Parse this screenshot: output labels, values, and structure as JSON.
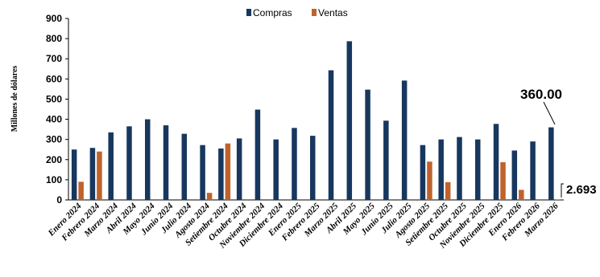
{
  "chart_data": {
    "type": "bar",
    "title": "",
    "xlabel": "",
    "ylabel": "Millones de dólares",
    "ylim": [
      0,
      900
    ],
    "yticks": [
      0,
      100,
      200,
      300,
      400,
      500,
      600,
      700,
      800,
      900
    ],
    "grid": false,
    "legend_position": "top-center",
    "categories": [
      "Enero 2024",
      "Febrero 2024",
      "Marzo 2024",
      "Abril 2024",
      "Mayo 2024",
      "Junio 2024",
      "Julio 2024",
      "Agosto 2024",
      "Setiembre 2024",
      "Octubre 2024",
      "Noviembre 2024",
      "Diciembre 2024",
      "Enero 2025",
      "Febrero 2025",
      "Marzo 2025",
      "Abril 2025",
      "Mayo 2025",
      "Junio 2025",
      "Julio 2025",
      "Agosto 2025",
      "Setiembre 2025",
      "Octubre 2025",
      "Noviembre 2025",
      "Diciembre 2025",
      "Enero 2026",
      "Febrero 2026",
      "Marzo 2026"
    ],
    "series": [
      {
        "name": "Compras",
        "color": "#17375e",
        "values": [
          250,
          258,
          335,
          365,
          400,
          370,
          328,
          272,
          255,
          305,
          448,
          300,
          357,
          318,
          643,
          787,
          547,
          393,
          592,
          272,
          300,
          312,
          300,
          377,
          245,
          290,
          360
        ]
      },
      {
        "name": "Ventas",
        "color": "#c0622c",
        "values": [
          90,
          240,
          0,
          0,
          0,
          0,
          0,
          35,
          280,
          0,
          0,
          0,
          0,
          0,
          0,
          0,
          0,
          0,
          0,
          190,
          88,
          0,
          0,
          187,
          50,
          0,
          2.693
        ]
      }
    ],
    "annotations": [
      {
        "text": "360.00",
        "series": "Compras",
        "category": "Marzo 2026"
      },
      {
        "text": "2.693",
        "series": "Ventas",
        "category": "Marzo 2026"
      }
    ]
  }
}
